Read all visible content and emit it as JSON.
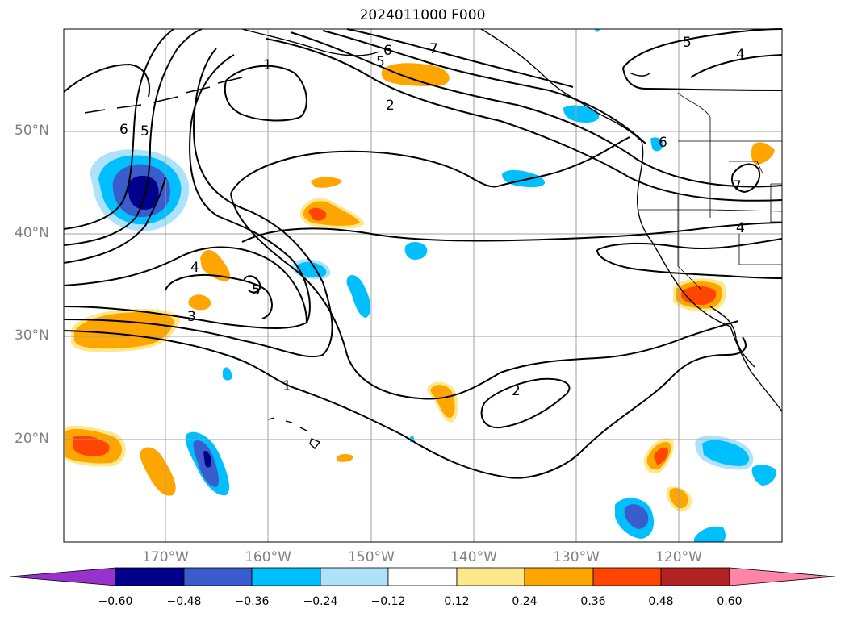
{
  "title": "2024011000 F000",
  "map": {
    "lat_labels": [
      "50°N",
      "40°N",
      "30°N",
      "20°N"
    ],
    "lon_labels": [
      "170°W",
      "160°W",
      "150°W",
      "140°W",
      "130°W",
      "120°W"
    ],
    "grid_color": "#a0a0a0",
    "contour_labels": [
      "1",
      "2",
      "3",
      "4",
      "5",
      "6",
      "7"
    ]
  },
  "colorbar": {
    "ticks": [
      "−0.60",
      "−0.48",
      "−0.36",
      "−0.24",
      "−0.12",
      "0.12",
      "0.24",
      "0.36",
      "0.48",
      "0.60"
    ],
    "colors": [
      "#9932cc",
      "#00008b",
      "#3a5ccc",
      "#00bfff",
      "#aee2fa",
      "#ffffff",
      "#ffe88a",
      "#ffa500",
      "#ff4500",
      "#b22222",
      "#ff85a8"
    ]
  }
}
